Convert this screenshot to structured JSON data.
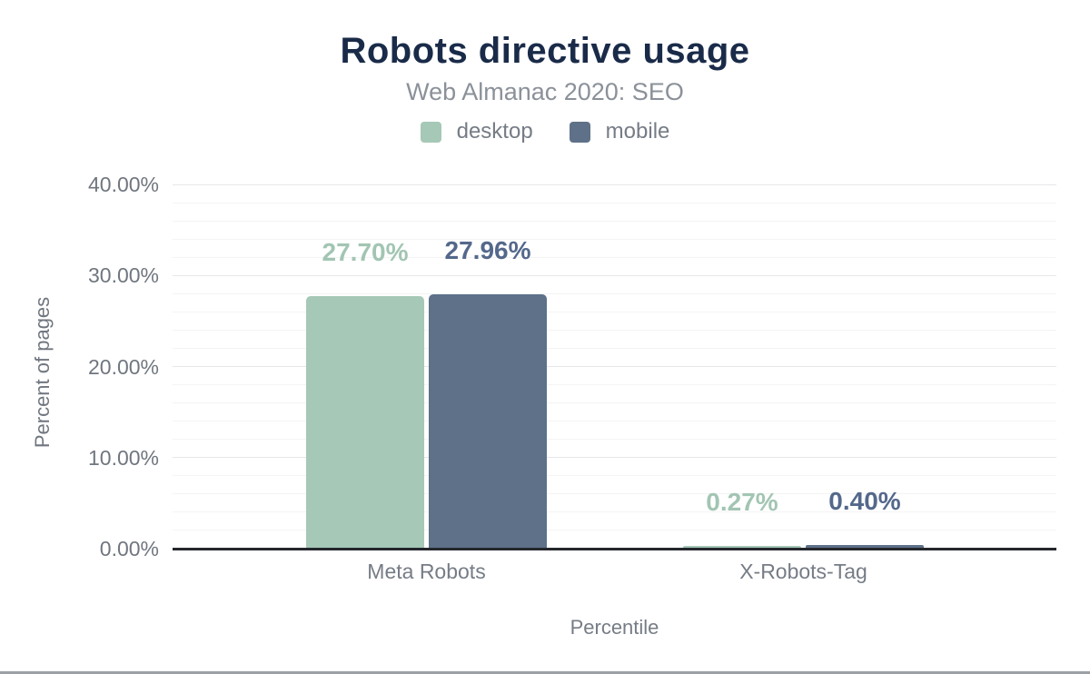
{
  "page": {
    "title": "Robots directive usage",
    "subtitle": "Web Almanac 2020: SEO"
  },
  "legend": [
    {
      "label": "desktop",
      "color": "#a6c8b7"
    },
    {
      "label": "mobile",
      "color": "#5e7189"
    }
  ],
  "colors": {
    "title": "#1a2b49",
    "subtitle_text": "#8b9199",
    "axis_text": "#70767f",
    "axis_line": "#24272c",
    "major_gridline": "#e6e7e9",
    "minor_gridline": "#f4f4f5",
    "desktop_bar": "#a6c8b7",
    "mobile_bar": "#5e7189",
    "desktop_value_label": "#a2c5b3",
    "mobile_value_label": "#54688b"
  },
  "chart_data": {
    "type": "bar",
    "title": "Robots directive usage",
    "subtitle": "Web Almanac 2020: SEO",
    "categories": [
      "Meta Robots",
      "X-Robots-Tag"
    ],
    "series": [
      {
        "name": "desktop",
        "color": "#a6c8b7",
        "label_color": "#a2c5b3",
        "values": [
          27.7,
          0.27
        ],
        "value_labels": [
          "27.70%",
          "0.27%"
        ]
      },
      {
        "name": "mobile",
        "color": "#5e7189",
        "label_color": "#54688b",
        "values": [
          27.96,
          0.4
        ],
        "value_labels": [
          "27.96%",
          "0.40%"
        ]
      }
    ],
    "xlabel": "Percentile",
    "ylabel": "Percent of pages",
    "ylim": [
      0,
      40
    ],
    "ytick_labels": [
      "0.00%",
      "10.00%",
      "20.00%",
      "30.00%",
      "40.00%"
    ],
    "ytick_step_major": 10,
    "ytick_step_minor": 2,
    "grid": true,
    "legend_position": "top"
  }
}
